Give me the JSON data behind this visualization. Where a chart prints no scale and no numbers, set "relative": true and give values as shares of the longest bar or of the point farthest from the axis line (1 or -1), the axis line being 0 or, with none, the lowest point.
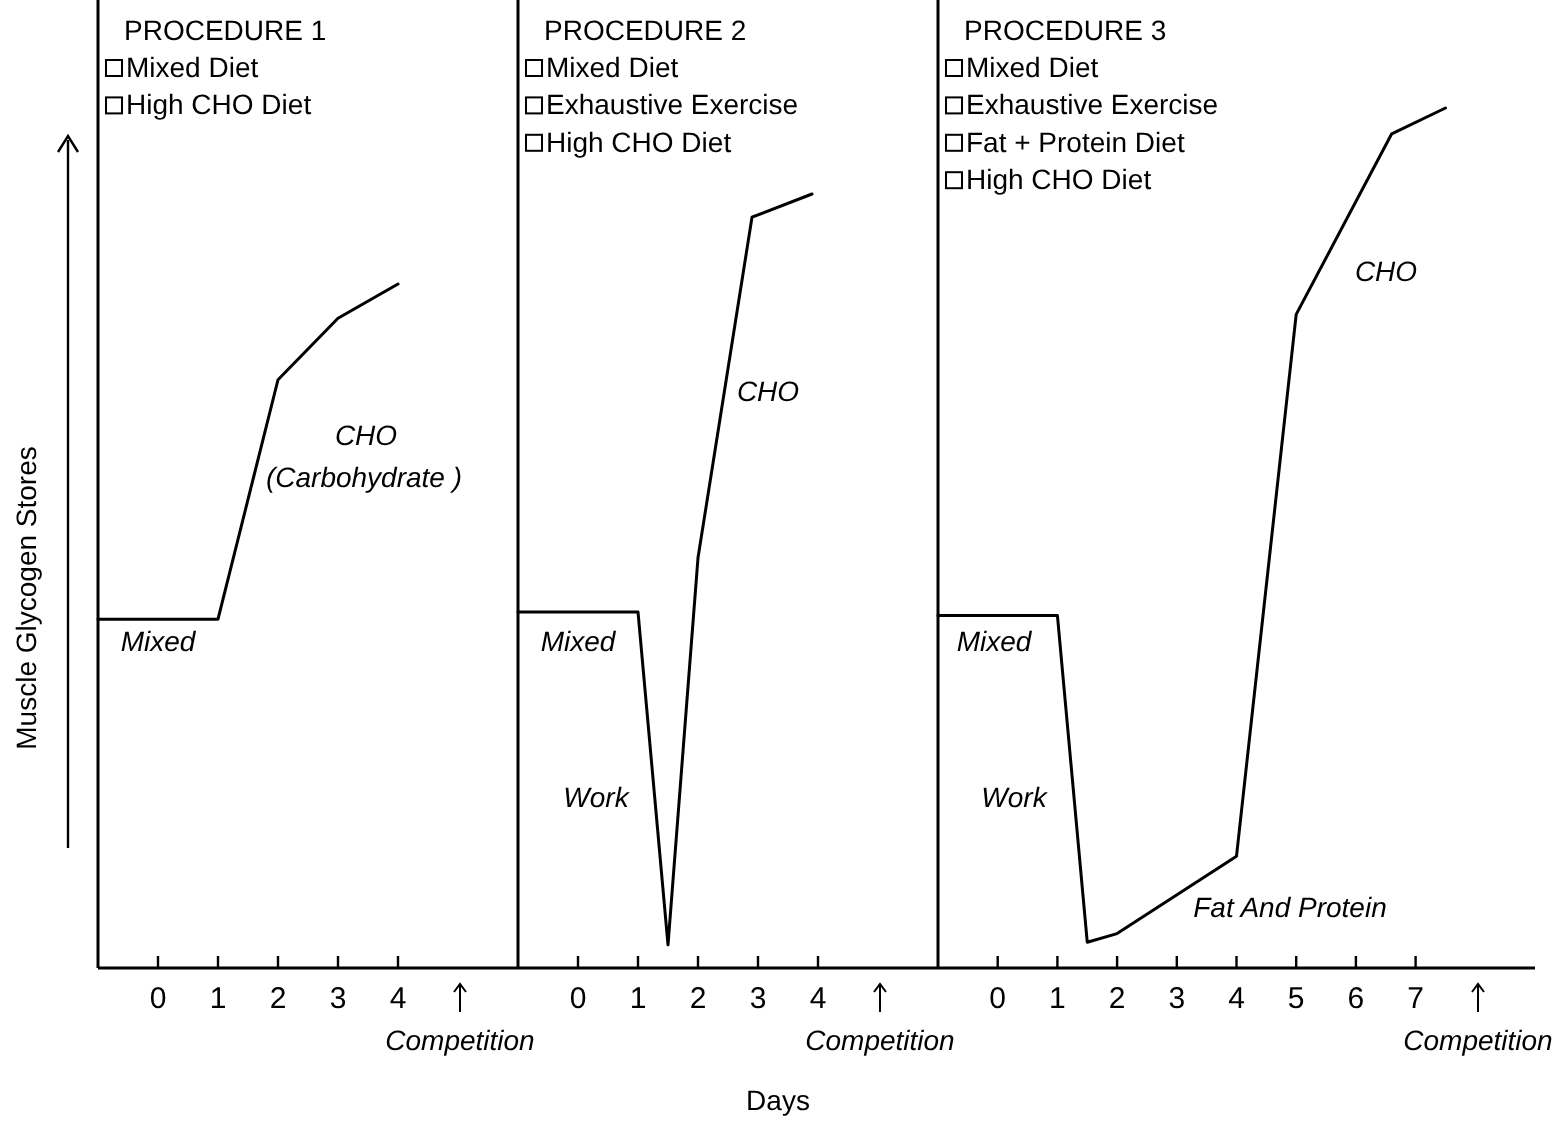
{
  "chart_data": [
    {
      "type": "line",
      "title": "PROCEDURE 1",
      "subtitle": "Mixed Diet\nHigh CHO Diet",
      "ylabel": "Muscle Glycogen Stores",
      "relative": true,
      "xlim": [
        -1,
        6
      ],
      "xticks": [
        0,
        1,
        2,
        3,
        4
      ],
      "series": [
        {
          "color": "#000000",
          "x": [
            -1,
            1,
            2,
            3,
            4
          ],
          "values": [
            0.51,
            0.51,
            0.86,
            0.95,
            1
          ]
        }
      ],
      "annotations": [
        "Mixed",
        "CHO",
        "(Carbohydrate )",
        "Competition"
      ]
    },
    {
      "type": "line",
      "title": "PROCEDURE 2",
      "subtitle": "Mixed Diet\nExhaustive Exercise\nHigh CHO Diet",
      "xlabel": "Days",
      "relative": true,
      "xlim": [
        -1,
        6
      ],
      "xticks": [
        0,
        1,
        2,
        3,
        4
      ],
      "series": [
        {
          "color": "#000000",
          "x": [
            -1,
            1,
            1.5,
            2,
            2.9,
            3.9
          ],
          "values": [
            0.46,
            0.46,
            0.03,
            0.53,
            0.97,
            1
          ]
        }
      ],
      "annotations": [
        "Mixed",
        "Work",
        "CHO",
        "Competition"
      ]
    },
    {
      "type": "line",
      "title": "PROCEDURE 3",
      "subtitle": "Mixed Diet\nExhaustive Exercise\nFat + Protein Diet\nHigh CHO Diet",
      "relative": true,
      "xlim": [
        -1,
        9
      ],
      "xticks": [
        0,
        1,
        2,
        3,
        4,
        5,
        6,
        7
      ],
      "series": [
        {
          "color": "#000000",
          "x": [
            -1,
            1,
            1.5,
            2,
            4,
            5,
            6.6,
            7.5
          ],
          "values": [
            0.41,
            0.41,
            0.03,
            0.04,
            0.13,
            0.76,
            0.97,
            1
          ]
        }
      ],
      "annotations": [
        "Mixed",
        "Work",
        "Fat And Protein",
        "CHO",
        "Competition"
      ]
    }
  ]
}
